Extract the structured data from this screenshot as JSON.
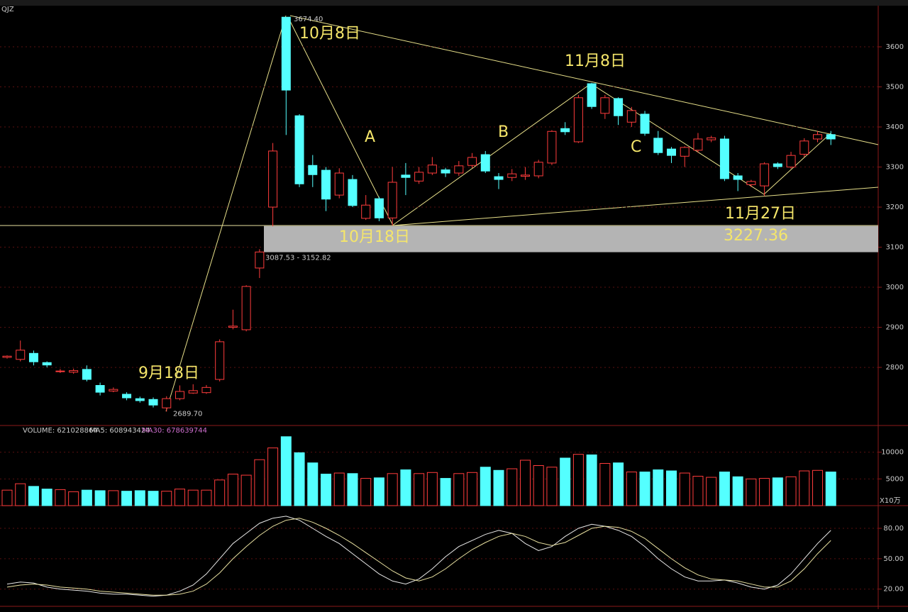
{
  "chart_data": [
    {
      "type": "candlestick",
      "title": "QJZ",
      "open": [
        2825,
        2820,
        2835,
        2812,
        2790,
        2788,
        2795,
        2755,
        2741,
        2733,
        2722,
        2720,
        2699,
        2722,
        2736,
        2737,
        2770,
        2900,
        2894,
        3048,
        3200,
        3674,
        3428,
        3304,
        3292,
        3230,
        3269,
        3172,
        3221,
        3173,
        3280,
        3265,
        3285,
        3293,
        3285,
        3304,
        3331,
        3276,
        3274,
        3277,
        3278,
        3310,
        3396,
        3363,
        3508,
        3434,
        3471,
        3412,
        3432,
        3372,
        3345,
        3327,
        3342,
        3368,
        3370,
        3278,
        3256,
        3253,
        3308,
        3300,
        3332,
        3370,
        3381
      ],
      "close": [
        2828,
        2843,
        2814,
        2806,
        2791,
        2792,
        2770,
        2738,
        2745,
        2724,
        2717,
        2706,
        2722,
        2740,
        2742,
        2750,
        2864,
        2903,
        3002,
        3088,
        3340,
        3492,
        3258,
        3281,
        3220,
        3285,
        3204,
        3205,
        3173,
        3262,
        3274,
        3287,
        3305,
        3285,
        3303,
        3324,
        3290,
        3269,
        3283,
        3280,
        3312,
        3389,
        3388,
        3473,
        3451,
        3473,
        3428,
        3441,
        3384,
        3336,
        3329,
        3349,
        3370,
        3373,
        3271,
        3269,
        3264,
        3308,
        3301,
        3329,
        3365,
        3381,
        3370
      ],
      "high": [
        2830,
        2867,
        2842,
        2815,
        2796,
        2797,
        2805,
        2762,
        2750,
        2738,
        2727,
        2725,
        2728,
        2755,
        2758,
        2756,
        2870,
        2944,
        3005,
        3095,
        3360,
        3674.4,
        3432,
        3330,
        3300,
        3297,
        3280,
        3230,
        3226,
        3300,
        3310,
        3300,
        3325,
        3298,
        3315,
        3335,
        3340,
        3285,
        3295,
        3300,
        3318,
        3392,
        3412,
        3480,
        3510,
        3480,
        3474,
        3450,
        3440,
        3390,
        3350,
        3352,
        3385,
        3378,
        3378,
        3285,
        3268,
        3312,
        3312,
        3338,
        3372,
        3390,
        3390
      ],
      "low": [
        2822,
        2815,
        2805,
        2800,
        2786,
        2784,
        2765,
        2730,
        2738,
        2718,
        2712,
        2700,
        2689.7,
        2718,
        2734,
        2734,
        2765,
        2895,
        2890,
        3023,
        3152,
        3380,
        3250,
        3250,
        3190,
        3222,
        3200,
        3168,
        3165,
        3154,
        3230,
        3258,
        3280,
        3275,
        3278,
        3298,
        3285,
        3245,
        3265,
        3268,
        3272,
        3305,
        3380,
        3360,
        3445,
        3420,
        3405,
        3400,
        3378,
        3330,
        3310,
        3300,
        3336,
        3362,
        3265,
        3240,
        3250,
        3228,
        3295,
        3296,
        3325,
        3362,
        3355
      ],
      "up_color": "#ff3c3c",
      "down_color": "#54ffff",
      "ylim": [
        2655,
        3685
      ],
      "yticks": [
        2800,
        2900,
        3000,
        3100,
        3200,
        3300,
        3400,
        3500,
        3600
      ],
      "band": [
        3087.53,
        3152.82
      ],
      "band_label": "3087.53 - 3152.82",
      "extreme_labels": [
        "3674.40",
        "2689.70"
      ],
      "annotations": [
        "10月8日",
        "A",
        "B",
        "11月8日",
        "C",
        "11月27日",
        "3227.36",
        "10月18日",
        "9月18日"
      ]
    },
    {
      "type": "bar",
      "legend": [
        "VOLUME: 621028864",
        "MA5: 608943424",
        "MA30: 678639744"
      ],
      "unit": "X10万",
      "values": [
        2900,
        4100,
        3600,
        3100,
        3000,
        2600,
        2900,
        2800,
        2800,
        2700,
        2800,
        2700,
        2700,
        3100,
        2900,
        2900,
        4800,
        5900,
        5700,
        8600,
        10800,
        12900,
        9900,
        8000,
        5900,
        6100,
        6000,
        5100,
        5200,
        6000,
        6700,
        6000,
        6200,
        5100,
        6000,
        6200,
        7200,
        6600,
        6900,
        8500,
        7500,
        7200,
        8900,
        9600,
        9500,
        7900,
        8000,
        6300,
        6300,
        6700,
        6500,
        6100,
        5500,
        5300,
        6300,
        5400,
        5000,
        5100,
        5200,
        5400,
        6500,
        6600,
        6300
      ],
      "ylim": [
        0,
        14600
      ],
      "yticks": [
        5000,
        10000
      ]
    },
    {
      "type": "line",
      "series": [
        {
          "color": "#e8e8e8",
          "values": [
            25,
            27,
            26,
            22,
            20,
            19,
            18,
            16,
            15,
            15,
            14,
            13,
            14,
            18,
            24,
            35,
            50,
            65,
            75,
            85,
            90,
            92,
            88,
            80,
            72,
            65,
            55,
            45,
            35,
            28,
            25,
            30,
            40,
            52,
            62,
            68,
            74,
            78,
            75,
            65,
            58,
            62,
            72,
            80,
            84,
            82,
            78,
            72,
            62,
            50,
            40,
            32,
            28,
            28,
            29,
            26,
            22,
            20,
            24,
            35,
            50,
            65,
            78
          ]
        },
        {
          "color": "#e8e0a0",
          "values": [
            22,
            24,
            25,
            24,
            22,
            21,
            20,
            18,
            17,
            16,
            15,
            14,
            14,
            15,
            18,
            25,
            36,
            50,
            62,
            73,
            82,
            88,
            90,
            86,
            80,
            73,
            65,
            56,
            47,
            38,
            31,
            28,
            32,
            40,
            50,
            59,
            66,
            72,
            75,
            72,
            66,
            63,
            66,
            73,
            80,
            82,
            81,
            77,
            70,
            60,
            50,
            41,
            34,
            30,
            29,
            28,
            25,
            22,
            22,
            28,
            40,
            55,
            68
          ]
        }
      ],
      "ylim": [
        3,
        101
      ],
      "yticks": [
        {
          "value": 20,
          "label": "20.00"
        },
        {
          "value": 50,
          "label": "50.00"
        },
        {
          "value": 80,
          "label": "80.00"
        }
      ]
    }
  ]
}
